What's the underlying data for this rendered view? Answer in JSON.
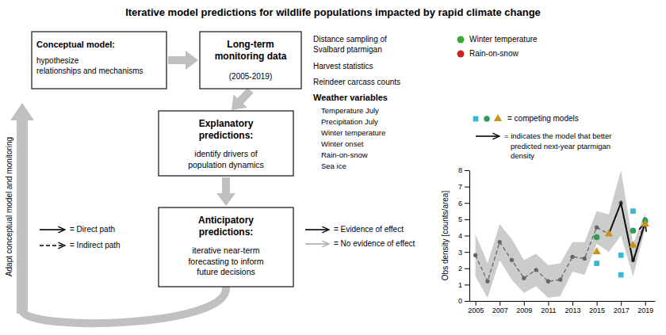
{
  "chart_data": {
    "type": "line",
    "title": "Iterative model predictions for wildlife populations impacted by rapid climate change",
    "ylabel": "Obs density [counts/area]",
    "x": [
      2005,
      2006,
      2007,
      2008,
      2009,
      2010,
      2011,
      2012,
      2013,
      2014,
      2015,
      2016,
      2017,
      2018,
      2019
    ],
    "xlim": [
      2004.5,
      2019.8
    ],
    "xticks": [
      2005,
      2007,
      2009,
      2011,
      2013,
      2015,
      2017,
      2019
    ],
    "ylim": [
      0,
      8
    ],
    "yticks": [
      0,
      1,
      2,
      3,
      4,
      5,
      6,
      7,
      8
    ],
    "series": [
      {
        "type": "band",
        "color": "#aaaaaa",
        "upper": [
          4.1,
          2.3,
          4.7,
          3.8,
          2.5,
          2.9,
          2.2,
          2.3,
          3.6,
          3.6,
          5.5,
          5.3,
          8.0,
          3.5,
          5.4
        ],
        "lower": [
          1.5,
          0.2,
          2.5,
          1.3,
          0.5,
          0.9,
          0.2,
          0.3,
          1.8,
          1.6,
          3.5,
          3.0,
          4.0,
          1.5,
          4.4
        ]
      },
      {
        "type": "line",
        "color": "#666666",
        "line_style": "dashed",
        "marker": "circle",
        "values": [
          2.8,
          1.2,
          3.6,
          2.5,
          1.4,
          1.9,
          1.2,
          1.3,
          2.7,
          2.6,
          4.5,
          4.1,
          6.0,
          2.5,
          5.0
        ]
      },
      {
        "type": "line",
        "color": "#111111",
        "line_style": "solid",
        "marker": "arrow",
        "x": [
          2016,
          2017,
          2018,
          2019
        ],
        "values": [
          4.1,
          6.0,
          2.4,
          4.8
        ]
      },
      {
        "type": "scatter",
        "color": "#36b8d8",
        "marker": "square",
        "x": [
          2015,
          2017,
          2017,
          2018
        ],
        "values": [
          2.3,
          2.8,
          1.6,
          5.5
        ]
      },
      {
        "type": "scatter",
        "color": "#2d9f55",
        "marker": "circle",
        "x": [
          2015,
          2018,
          2019
        ],
        "values": [
          3.9,
          4.3,
          4.9
        ]
      },
      {
        "type": "scatter",
        "color": "#c9931a",
        "marker": "triangle",
        "x": [
          2015,
          2016,
          2018,
          2019
        ],
        "values": [
          3.0,
          4.1,
          3.4,
          4.7
        ]
      }
    ],
    "annotations": [
      {
        "text": "Conceptual model:"
      },
      {
        "text": "hypothesize\nrelationships and mechanisms"
      },
      {
        "text": "Long-term\nmonitoring data"
      },
      {
        "text": "(2005-2019)"
      },
      {
        "text": "Explanatory\npredictions:"
      },
      {
        "text": "identify drivers of\npopulation dynamics"
      },
      {
        "text": "Anticipatory\npredictions:"
      },
      {
        "text": "iterative near-term\nforecasting to inform\nfuture decisions"
      },
      {
        "text": "Adapt conceptual model and monitoring"
      },
      {
        "text": "Distance sampling of\nSvalbard ptarmigan"
      },
      {
        "text": "Harvest statistics"
      },
      {
        "text": "Reindeer carcass counts"
      },
      {
        "text": "Weather variables"
      },
      {
        "text": "Temperature July"
      },
      {
        "text": "Precipitation July"
      },
      {
        "text": "Winter temperature"
      },
      {
        "text": "Winter onset"
      },
      {
        "text": "Rain-on-snow"
      },
      {
        "text": "Sea ice"
      },
      {
        "text": "= Direct path",
        "color": "#000000",
        "line_style": "solid"
      },
      {
        "text": "= Indirect path",
        "color": "#000000",
        "line_style": "dashed"
      },
      {
        "text": "Winter temperature",
        "color": "#3aaa35"
      },
      {
        "text": "Rain-on-snow",
        "color": "#cc2222"
      },
      {
        "text": "= Evidence of effect",
        "color": "#000000",
        "line_style": "solid"
      },
      {
        "text": "= No evidence of effect",
        "color": "#aaaaaa",
        "line_style": "solid"
      },
      {
        "text": "= competing models"
      },
      {
        "text": "= indicates the model that better\n   predicted next-year ptarmigan\n   density",
        "color": "#000000",
        "line_style": "solid"
      }
    ]
  }
}
